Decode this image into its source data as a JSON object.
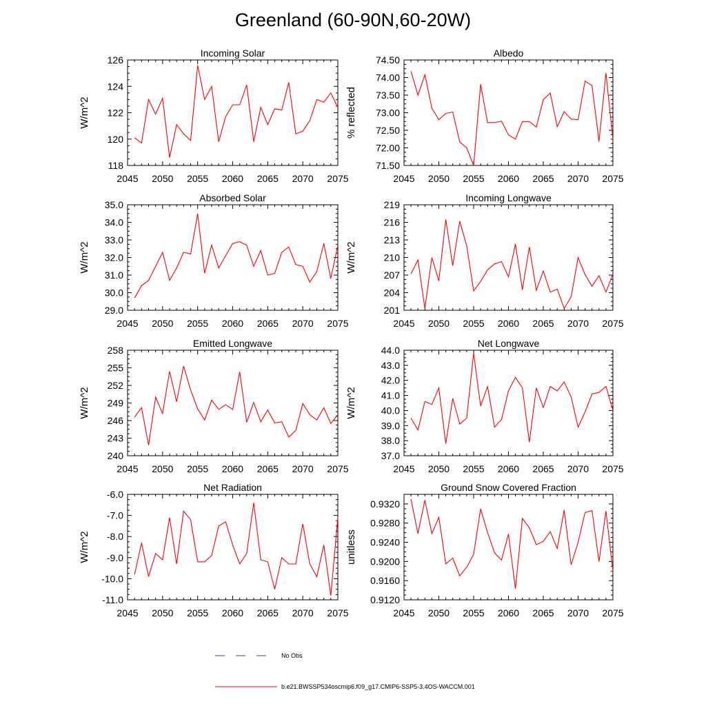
{
  "title": "Greenland (60-90N,60-20W)",
  "colors": {
    "series": "#ff0000",
    "obs": "#3333cc",
    "axis": "#000000"
  },
  "legend": {
    "obs_label": "No Obs",
    "series_label": "b.e21.BWSSP534oscmip6.f09_g17.CMIP6-SSP5-3.4OS-WACCM.001"
  },
  "chart_data": [
    {
      "type": "line",
      "title": "Incoming Solar",
      "xlabel": "",
      "ylabel": "W/m^2",
      "xlim": [
        2045,
        2075
      ],
      "ylim": [
        118,
        126
      ],
      "xticks": [
        "2045",
        "2050",
        "2055",
        "2060",
        "2065",
        "2070",
        "2075"
      ],
      "yticks": [
        "118",
        "120",
        "122",
        "124",
        "126"
      ],
      "x": [
        2046,
        2047,
        2048,
        2049,
        2050,
        2051,
        2052,
        2053,
        2054,
        2055,
        2056,
        2057,
        2058,
        2059,
        2060,
        2061,
        2062,
        2063,
        2064,
        2065,
        2066,
        2067,
        2068,
        2069,
        2070,
        2071,
        2072,
        2073,
        2074,
        2075
      ],
      "values": [
        120.1,
        119.7,
        123.0,
        121.9,
        123.1,
        118.6,
        121.1,
        120.4,
        119.9,
        125.6,
        123.0,
        124.0,
        119.8,
        121.7,
        122.6,
        122.6,
        124.1,
        119.8,
        122.4,
        121.1,
        122.3,
        122.2,
        124.3,
        120.4,
        120.6,
        121.4,
        123.0,
        122.8,
        123.5,
        122.4
      ]
    },
    {
      "type": "line",
      "title": "Albedo",
      "xlabel": "",
      "ylabel": "% reflected",
      "xlim": [
        2045,
        2075
      ],
      "ylim": [
        71.5,
        74.5
      ],
      "xticks": [
        "2045",
        "2050",
        "2055",
        "2060",
        "2065",
        "2070",
        "2075"
      ],
      "yticks": [
        "71.50",
        "72.00",
        "72.50",
        "73.00",
        "73.50",
        "74.00",
        "74.50"
      ],
      "x": [
        2046,
        2047,
        2048,
        2049,
        2050,
        2051,
        2052,
        2053,
        2054,
        2055,
        2056,
        2057,
        2058,
        2059,
        2060,
        2061,
        2062,
        2063,
        2064,
        2065,
        2066,
        2067,
        2068,
        2069,
        2070,
        2071,
        2072,
        2073,
        2074,
        2075
      ],
      "values": [
        74.18,
        73.5,
        74.08,
        73.13,
        72.8,
        72.98,
        73.02,
        72.17,
        72.0,
        71.5,
        73.81,
        72.72,
        72.72,
        72.76,
        72.37,
        72.25,
        72.75,
        72.75,
        72.59,
        73.37,
        73.56,
        72.6,
        73.03,
        72.82,
        72.8,
        73.9,
        73.77,
        72.18,
        74.13,
        72.24
      ]
    },
    {
      "type": "line",
      "title": "Absorbed Solar",
      "xlabel": "",
      "ylabel": "W/m^2",
      "xlim": [
        2045,
        2075
      ],
      "ylim": [
        29.0,
        35.0
      ],
      "xticks": [
        "2045",
        "2050",
        "2055",
        "2060",
        "2065",
        "2070",
        "2075"
      ],
      "yticks": [
        "29.0",
        "30.0",
        "31.0",
        "32.0",
        "33.0",
        "34.0",
        "35.0"
      ],
      "x": [
        2046,
        2047,
        2048,
        2049,
        2050,
        2051,
        2052,
        2053,
        2054,
        2055,
        2056,
        2057,
        2058,
        2059,
        2060,
        2061,
        2062,
        2063,
        2064,
        2065,
        2066,
        2067,
        2068,
        2069,
        2070,
        2071,
        2072,
        2073,
        2074,
        2075
      ],
      "values": [
        29.7,
        30.4,
        30.7,
        31.5,
        32.3,
        30.7,
        31.4,
        32.3,
        32.2,
        34.5,
        31.1,
        32.7,
        31.4,
        32.1,
        32.8,
        32.9,
        32.7,
        31.5,
        32.4,
        31.0,
        31.1,
        32.3,
        32.6,
        31.6,
        31.5,
        30.6,
        31.2,
        32.8,
        30.8,
        32.7
      ]
    },
    {
      "type": "line",
      "title": "Incoming Longwave",
      "xlabel": "",
      "ylabel": "W/m^2",
      "xlim": [
        2045,
        2075
      ],
      "ylim": [
        201,
        219
      ],
      "xticks": [
        "2045",
        "2050",
        "2055",
        "2060",
        "2065",
        "2070",
        "2075"
      ],
      "yticks": [
        "201",
        "204",
        "207",
        "210",
        "213",
        "216",
        "219"
      ],
      "x": [
        2046,
        2047,
        2048,
        2049,
        2050,
        2051,
        2052,
        2053,
        2054,
        2055,
        2056,
        2057,
        2058,
        2059,
        2060,
        2061,
        2062,
        2063,
        2064,
        2065,
        2066,
        2067,
        2068,
        2069,
        2070,
        2071,
        2072,
        2073,
        2074,
        2075
      ],
      "values": [
        207.2,
        209.6,
        201.3,
        210.0,
        206.0,
        216.5,
        208.6,
        216.2,
        212.0,
        204.3,
        205.9,
        207.9,
        208.9,
        209.3,
        206.7,
        212.3,
        204.5,
        211.8,
        204.4,
        207.7,
        204.1,
        204.6,
        201.3,
        203.3,
        210.0,
        207.1,
        205.1,
        206.9,
        204.1,
        207.2
      ]
    },
    {
      "type": "line",
      "title": "Emitted Longwave",
      "xlabel": "",
      "ylabel": "W/m^2",
      "xlim": [
        2045,
        2075
      ],
      "ylim": [
        240,
        258
      ],
      "xticks": [
        "2045",
        "2050",
        "2055",
        "2060",
        "2065",
        "2070",
        "2075"
      ],
      "yticks": [
        "240",
        "243",
        "246",
        "249",
        "252",
        "255",
        "258"
      ],
      "x": [
        2046,
        2047,
        2048,
        2049,
        2050,
        2051,
        2052,
        2053,
        2054,
        2055,
        2056,
        2057,
        2058,
        2059,
        2060,
        2061,
        2062,
        2063,
        2064,
        2065,
        2066,
        2067,
        2068,
        2069,
        2070,
        2071,
        2072,
        2073,
        2074,
        2075
      ],
      "values": [
        246.6,
        248.2,
        241.8,
        250.0,
        247.2,
        254.4,
        249.2,
        255.3,
        251.2,
        248.0,
        246.1,
        249.5,
        247.9,
        248.7,
        247.9,
        254.3,
        245.7,
        249.1,
        245.8,
        247.8,
        245.6,
        245.8,
        243.2,
        244.3,
        248.9,
        247.0,
        246.1,
        248.2,
        245.5,
        247.0
      ]
    },
    {
      "type": "line",
      "title": "Net Longwave",
      "xlabel": "",
      "ylabel": "W/m^2",
      "xlim": [
        2045,
        2075
      ],
      "ylim": [
        37.0,
        44.0
      ],
      "xticks": [
        "2045",
        "2050",
        "2055",
        "2060",
        "2065",
        "2070",
        "2075"
      ],
      "yticks": [
        "37.0",
        "38.0",
        "39.0",
        "40.0",
        "41.0",
        "42.0",
        "43.0",
        "44.0"
      ],
      "x": [
        2046,
        2047,
        2048,
        2049,
        2050,
        2051,
        2052,
        2053,
        2054,
        2055,
        2056,
        2057,
        2058,
        2059,
        2060,
        2061,
        2062,
        2063,
        2064,
        2065,
        2066,
        2067,
        2068,
        2069,
        2070,
        2071,
        2072,
        2073,
        2074,
        2075
      ],
      "values": [
        39.5,
        38.7,
        40.6,
        40.4,
        41.5,
        37.8,
        40.8,
        39.1,
        39.5,
        43.8,
        40.3,
        41.6,
        38.9,
        39.4,
        41.3,
        42.2,
        41.5,
        37.9,
        41.5,
        40.2,
        41.6,
        41.3,
        41.9,
        40.9,
        38.9,
        39.9,
        41.1,
        41.2,
        41.6,
        40.0
      ]
    },
    {
      "type": "line",
      "title": "Net Radiation",
      "xlabel": "",
      "ylabel": "W/m^2",
      "xlim": [
        2045,
        2075
      ],
      "ylim": [
        -11.0,
        -6.0
      ],
      "xticks": [
        "2045",
        "2050",
        "2055",
        "2060",
        "2065",
        "2070",
        "2075"
      ],
      "yticks": [
        "-11.0",
        "-10.0",
        "-9.0",
        "-8.0",
        "-7.0",
        "-6.0"
      ],
      "x": [
        2046,
        2047,
        2048,
        2049,
        2050,
        2051,
        2052,
        2053,
        2054,
        2055,
        2056,
        2057,
        2058,
        2059,
        2060,
        2061,
        2062,
        2063,
        2064,
        2065,
        2066,
        2067,
        2068,
        2069,
        2070,
        2071,
        2072,
        2073,
        2074,
        2075
      ],
      "values": [
        -9.8,
        -8.3,
        -9.9,
        -8.8,
        -9.1,
        -7.1,
        -9.3,
        -6.8,
        -7.2,
        -9.2,
        -9.2,
        -8.9,
        -7.5,
        -7.3,
        -8.4,
        -9.3,
        -8.8,
        -6.4,
        -9.1,
        -9.2,
        -10.5,
        -9.0,
        -9.3,
        -9.3,
        -7.4,
        -9.3,
        -9.9,
        -8.4,
        -10.8,
        -7.1
      ]
    },
    {
      "type": "line",
      "title": "Ground Snow Covered Fraction",
      "xlabel": "",
      "ylabel": "unitless",
      "xlim": [
        2045,
        2075
      ],
      "ylim": [
        0.912,
        0.934
      ],
      "xticks": [
        "2045",
        "2050",
        "2055",
        "2060",
        "2065",
        "2070",
        "2075"
      ],
      "yticks": [
        "0.9120",
        "0.9160",
        "0.9200",
        "0.9240",
        "0.9280",
        "0.9320"
      ],
      "x": [
        2046,
        2047,
        2048,
        2049,
        2050,
        2051,
        2052,
        2053,
        2054,
        2055,
        2056,
        2057,
        2058,
        2059,
        2060,
        2061,
        2062,
        2063,
        2064,
        2065,
        2066,
        2067,
        2068,
        2069,
        2070,
        2071,
        2072,
        2073,
        2074,
        2075
      ],
      "values": [
        0.933,
        0.9258,
        0.9328,
        0.9258,
        0.9292,
        0.9195,
        0.9207,
        0.917,
        0.9188,
        0.9215,
        0.931,
        0.926,
        0.9218,
        0.9203,
        0.9257,
        0.9143,
        0.929,
        0.927,
        0.9235,
        0.9242,
        0.9262,
        0.9227,
        0.9307,
        0.9193,
        0.924,
        0.9302,
        0.9306,
        0.92,
        0.9305,
        0.918
      ]
    }
  ]
}
